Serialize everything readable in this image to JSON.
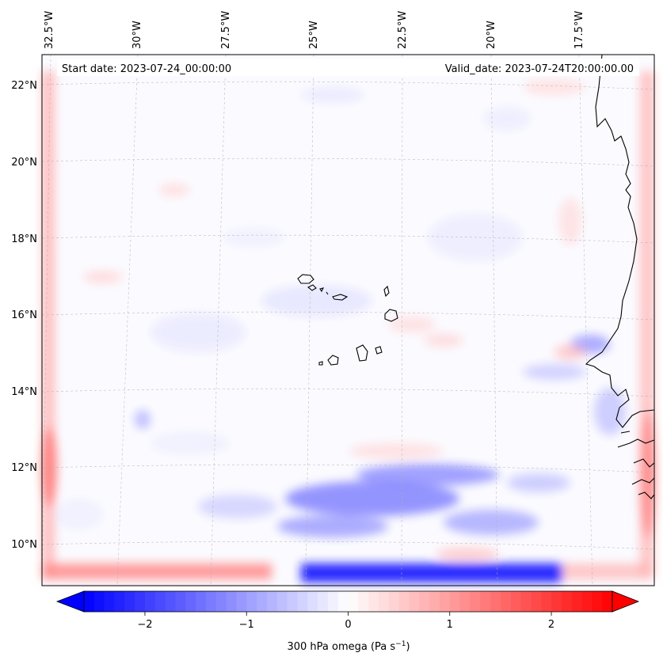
{
  "map": {
    "start_label": "Start date: 2023-07-24_00:00:00",
    "valid_label": "Valid_date: 2023-07-24T20:00:00.00",
    "lon_labels": [
      "32.5°W",
      "30°W",
      "27.5°W",
      "25°W",
      "22.5°W",
      "20°W",
      "17.5°W"
    ],
    "lat_labels": [
      "22°N",
      "20°N",
      "18°N",
      "16°N",
      "14°N",
      "12°N",
      "10°N"
    ]
  },
  "colorbar": {
    "label_main": "300 hPa omega (Pa s",
    "label_exp": "−1",
    "label_close": ")",
    "ticks": [
      "−2",
      "−1",
      "0",
      "1",
      "2"
    ],
    "vmin": -2.6,
    "vmax": 2.6,
    "tick_values": [
      -2,
      -1,
      0,
      1,
      2
    ],
    "neg_color": "#0000ff",
    "mid_color": "#ffffff",
    "pos_color": "#ff0000"
  }
}
